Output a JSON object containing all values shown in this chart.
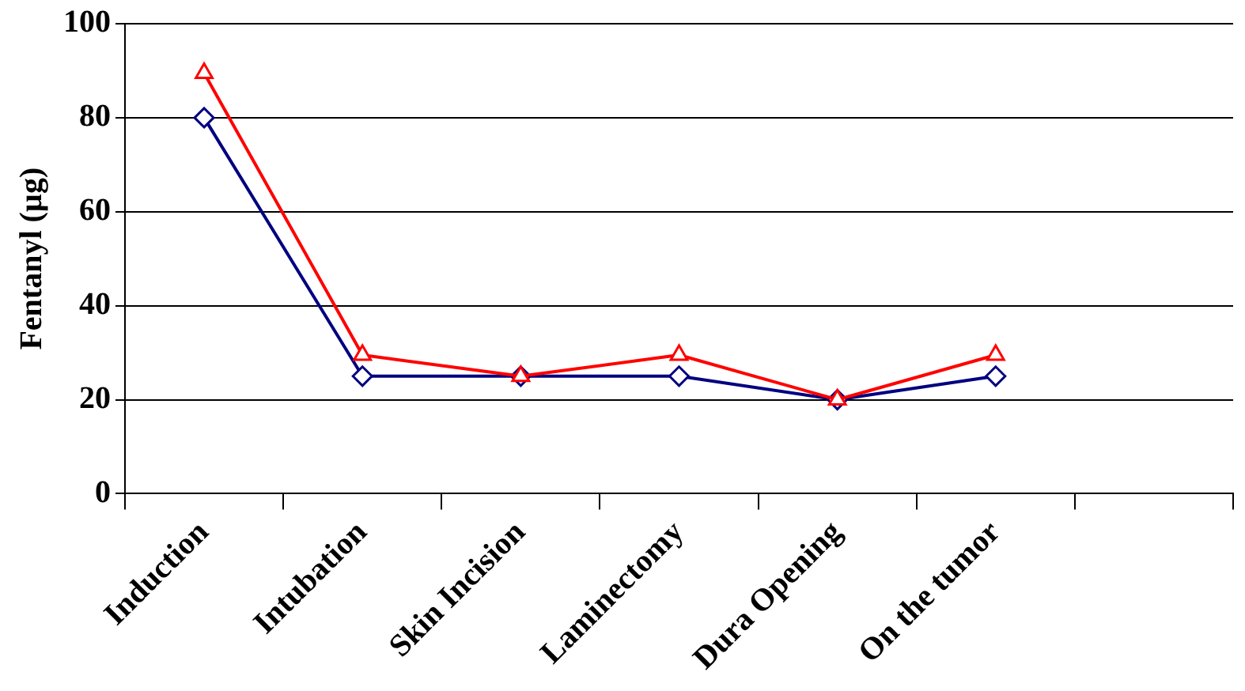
{
  "chart_data": {
    "type": "line",
    "ylabel": "Fentanyl (µg)",
    "categories": [
      "Induction",
      "Intubation",
      "Skin Incision",
      "Laminectomy",
      "Dura Opening",
      "On the tumor",
      null
    ],
    "series": [
      {
        "color": "#000080",
        "marker": "diamond",
        "values": [
          80,
          25,
          25,
          25,
          20,
          25,
          null
        ]
      },
      {
        "color": "#ff0000",
        "marker": "triangle",
        "values": [
          89.5,
          29.5,
          25,
          29.5,
          20,
          29.5,
          null
        ]
      }
    ],
    "ylim": [
      0,
      100
    ],
    "yticks": [
      0,
      20,
      40,
      60,
      80,
      100
    ],
    "grid": "y",
    "legend": false,
    "line_style": "solid"
  }
}
